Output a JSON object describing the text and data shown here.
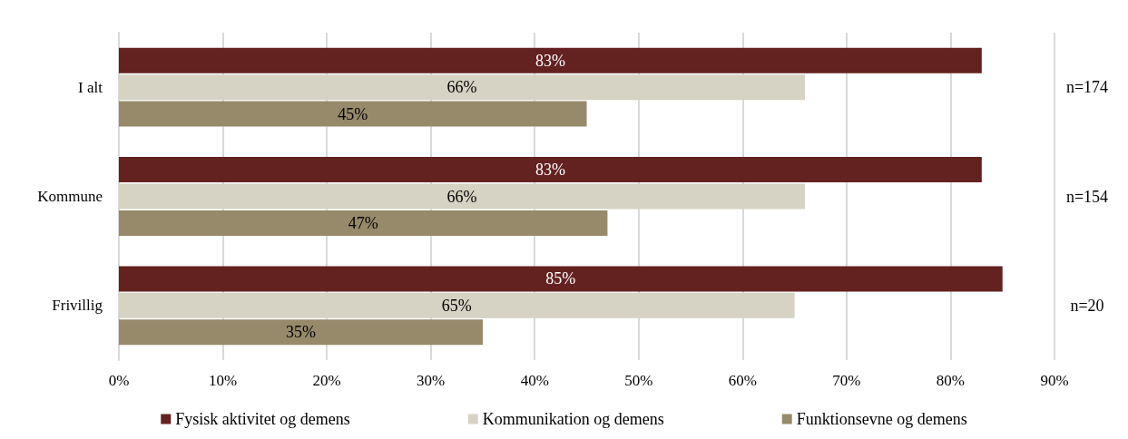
{
  "chart_data": {
    "type": "bar",
    "orientation": "horizontal",
    "categories": [
      "I alt",
      "Kommune",
      "Frivillig"
    ],
    "series": [
      {
        "name": "Fysisk aktivitet og demens",
        "color": "#632120",
        "values": [
          83,
          83,
          85
        ],
        "value_labels": [
          "83%",
          "83%",
          "85%"
        ]
      },
      {
        "name": "Kommunikation og demens",
        "color": "#d6d2c4",
        "values": [
          66,
          66,
          65
        ],
        "value_labels": [
          "66%",
          "66%",
          "65%"
        ]
      },
      {
        "name": "Funktionsevne og demens",
        "color": "#978a6b",
        "values": [
          45,
          47,
          35
        ],
        "value_labels": [
          "45%",
          "47%",
          "35%"
        ]
      }
    ],
    "xlim": [
      0,
      90
    ],
    "xticks": [
      {
        "value": 0,
        "label": "0%"
      },
      {
        "value": 10,
        "label": "10%"
      },
      {
        "value": 20,
        "label": "20%"
      },
      {
        "value": 30,
        "label": "30%"
      },
      {
        "value": 40,
        "label": "40%"
      },
      {
        "value": 50,
        "label": "50%"
      },
      {
        "value": 60,
        "label": "60%"
      },
      {
        "value": 70,
        "label": "70%"
      },
      {
        "value": 80,
        "label": "80%"
      },
      {
        "value": 90,
        "label": "90%"
      }
    ],
    "annotations": [
      "n=174",
      "n=154",
      "n=20"
    ],
    "grid": "x",
    "legend": "bottom"
  }
}
